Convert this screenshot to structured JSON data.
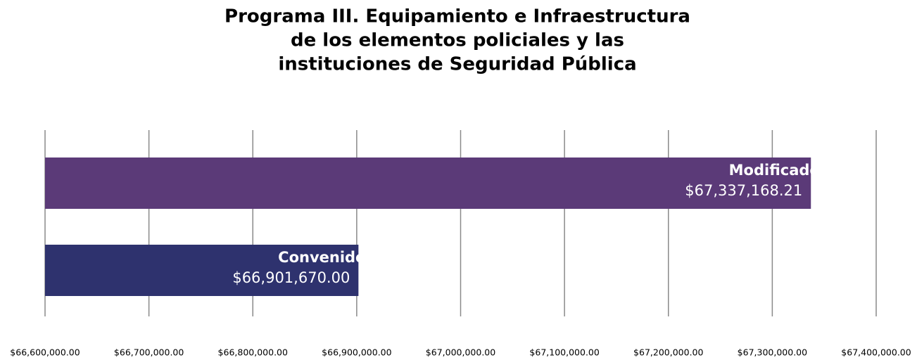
{
  "chart_data": {
    "type": "barh",
    "title": [
      "Programa III. Equipamiento e Infraestructura",
      "de los elementos policiales y las",
      "instituciones de Seguridad Pública"
    ],
    "categories": [
      "Modificado",
      "Convenido"
    ],
    "values": [
      67337168.21,
      66901670.0
    ],
    "value_labels": [
      "$67,337,168.21",
      "$66,901,670.00"
    ],
    "colors": [
      "#5b3a78",
      "#2e326e"
    ],
    "xlim": [
      66600000,
      67400000
    ],
    "xticks": [
      {
        "value": 66600000,
        "label": "$66,600,000.00"
      },
      {
        "value": 66700000,
        "label": "$66,700,000.00"
      },
      {
        "value": 66800000,
        "label": "$66,800,000.00"
      },
      {
        "value": 66900000,
        "label": "$66,900,000.00"
      },
      {
        "value": 67000000,
        "label": "$67,000,000.00"
      },
      {
        "value": 67100000,
        "label": "$67,100,000.00"
      },
      {
        "value": 67200000,
        "label": "$67,200,000.00"
      },
      {
        "value": 67300000,
        "label": "$67,300,000.00"
      },
      {
        "value": 67400000,
        "label": "$67,400,000.00"
      }
    ],
    "grid": true
  }
}
